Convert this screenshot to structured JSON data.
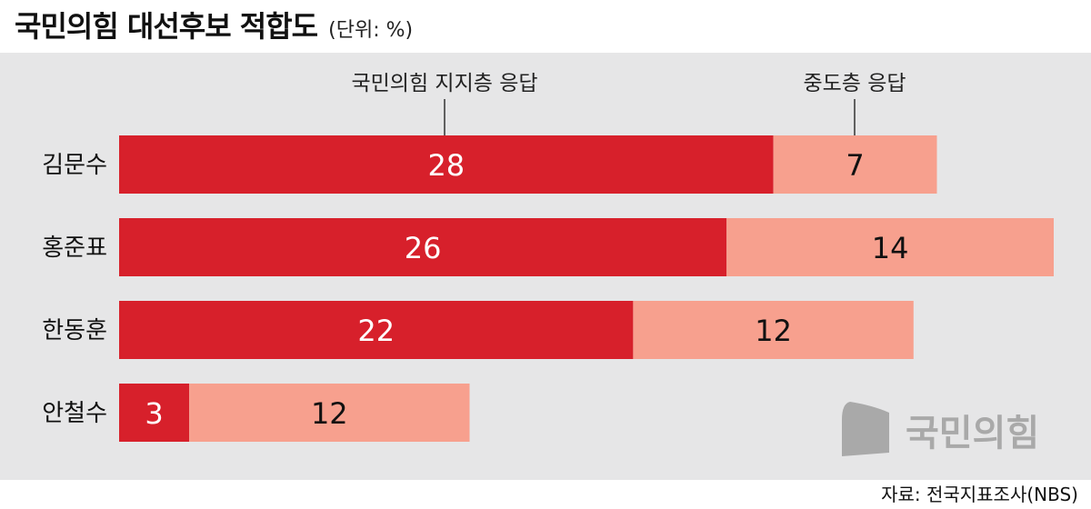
{
  "header": {
    "title": "국민의힘 대선후보 적합도",
    "unit": "(단위: %)"
  },
  "source": "자료: 전국지표조사(NBS)",
  "watermark": {
    "text": "국민의힘",
    "color": "#a9a9a9"
  },
  "colors": {
    "supporters": "#d7202b",
    "moderates": "#f7a08e",
    "panel": "#e6e6e7"
  },
  "chart_data": {
    "type": "bar",
    "orientation": "horizontal",
    "stacked": true,
    "title": "국민의힘 대선후보 적합도",
    "unit": "%",
    "categories": [
      "김문수",
      "홍준표",
      "한동훈",
      "안철수"
    ],
    "series": [
      {
        "name": "국민의힘 지지층 응답",
        "values": [
          28,
          26,
          22,
          3
        ]
      },
      {
        "name": "중도층 응답",
        "values": [
          7,
          14,
          12,
          12
        ]
      }
    ],
    "legend_placement": "top-annotations",
    "grid": false
  }
}
